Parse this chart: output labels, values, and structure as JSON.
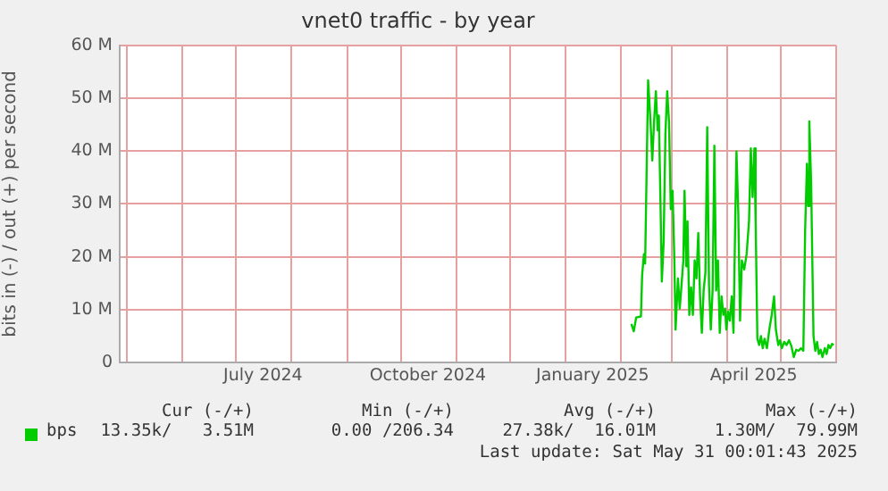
{
  "chart_data": {
    "type": "line",
    "title": "vnet0 traffic - by year",
    "ylabel": "bits in (-) / out (+) per second",
    "xlim": [
      "2024-04-27",
      "2025-06-01"
    ],
    "xticks": [
      {
        "value": "2024-05-01",
        "label": null
      },
      {
        "value": "2024-06-01",
        "label": null
      },
      {
        "value": "2024-07-01",
        "label": null
      },
      {
        "value": "2024-07-16",
        "label": "July 2024"
      },
      {
        "value": "2024-08-01",
        "label": null
      },
      {
        "value": "2024-09-01",
        "label": null
      },
      {
        "value": "2024-10-01",
        "label": null
      },
      {
        "value": "2024-10-16",
        "label": "October 2024"
      },
      {
        "value": "2024-11-01",
        "label": null
      },
      {
        "value": "2024-12-01",
        "label": null
      },
      {
        "value": "2025-01-01",
        "label": null
      },
      {
        "value": "2025-01-16",
        "label": "January 2025"
      },
      {
        "value": "2025-02-01",
        "label": null
      },
      {
        "value": "2025-03-01",
        "label": null
      },
      {
        "value": "2025-04-01",
        "label": null
      },
      {
        "value": "2025-04-16",
        "label": "April 2025"
      },
      {
        "value": "2025-05-01",
        "label": null
      },
      {
        "value": "2025-06-01",
        "label": null
      }
    ],
    "ylim": [
      0,
      60000000
    ],
    "yticks": [
      0,
      {
        "value": 10000000,
        "label": "10 M"
      },
      {
        "value": 20000000,
        "label": "20 M"
      },
      {
        "value": 30000000,
        "label": "30 M"
      },
      {
        "value": 40000000,
        "label": "40 M"
      },
      {
        "value": 50000000,
        "label": "50 M"
      },
      {
        "value": 60000000,
        "label": "60 M"
      }
    ],
    "grid": true,
    "legend": "bottom",
    "annotations": [
      "Cur (-/+)",
      "Min (-/+)",
      "Avg (-/+)",
      "Max (-/+)",
      "13.35k/   3.51M",
      "0.00 /206.34",
      "27.38k/  16.01M",
      "1.30M/  79.99M",
      "Last update: Sat May 31 00:01:43 2025"
    ],
    "series": [
      {
        "name": "bps",
        "color": "#00cc00",
        "x": [
          "2025-02-06T16:00",
          "2025-02-08",
          "2025-02-09T08:00",
          "2025-02-12",
          "2025-02-12T16:00",
          "2025-02-13T16:00",
          "2025-02-14T08:00",
          "2025-02-16",
          "2025-02-17T08:00",
          "2025-02-18T08:00",
          "2025-02-19T08:00",
          "2025-02-20T08:00",
          "2025-02-21T08:00",
          "2025-02-22",
          "2025-02-23",
          "2025-02-23T16:00",
          "2025-02-24T16:00",
          "2025-02-25T16:00",
          "2025-02-26T16:00",
          "2025-02-27T16:00",
          "2025-02-28T16:00",
          "2025-03-01T16:00",
          "2025-03-02T16:00",
          "2025-03-03T08:00",
          "2025-03-04T16:00",
          "2025-03-05T16:00",
          "2025-03-06T16:00",
          "2025-03-07T16:00",
          "2025-03-08T08:00",
          "2025-03-09T08:00",
          "2025-03-10",
          "2025-03-11",
          "2025-03-12",
          "2025-03-13",
          "2025-03-14",
          "2025-03-15",
          "2025-03-16",
          "2025-03-17",
          "2025-03-18",
          "2025-03-19",
          "2025-03-20",
          "2025-03-21",
          "2025-03-22",
          "2025-03-23",
          "2025-03-24",
          "2025-03-25",
          "2025-03-26",
          "2025-03-27",
          "2025-03-28",
          "2025-03-29",
          "2025-03-30",
          "2025-03-31",
          "2025-03-31T16:00",
          "2025-04-01T16:00",
          "2025-04-02T16:00",
          "2025-04-03T16:00",
          "2025-04-04T16:00",
          "2025-04-05T16:00",
          "2025-04-06T08:00",
          "2025-04-07T08:00",
          "2025-04-08T08:00",
          "2025-04-09T08:00",
          "2025-04-10T16:00",
          "2025-04-12",
          "2025-04-13T08:00",
          "2025-04-14T08:00",
          "2025-04-15T08:00",
          "2025-04-16T08:00",
          "2025-04-17",
          "2025-04-18",
          "2025-04-19",
          "2025-04-20",
          "2025-04-21",
          "2025-04-22",
          "2025-04-23T08:00",
          "2025-04-24T16:00",
          "2025-04-26",
          "2025-04-27T08:00",
          "2025-04-28T08:00",
          "2025-04-29T16:00",
          "2025-04-30T16:00",
          "2025-05-01T16:00",
          "2025-05-03",
          "2025-05-04T08:00",
          "2025-05-05T16:00",
          "2025-05-07",
          "2025-05-08T08:00",
          "2025-05-09T16:00",
          "2025-05-11",
          "2025-05-12T08:00",
          "2025-05-13T16:00",
          "2025-05-14T16:00",
          "2025-05-15T16:00",
          "2025-05-16T08:00",
          "2025-05-17",
          "2025-05-18",
          "2025-05-19T08:00",
          "2025-05-20T08:00",
          "2025-05-21T08:00",
          "2025-05-22T08:00",
          "2025-05-23T08:00",
          "2025-05-24T08:00",
          "2025-05-25T16:00",
          "2025-05-26T16:00",
          "2025-05-27T16:00",
          "2025-05-28T16:00",
          "2025-05-29T16:00",
          "2025-05-30T16:00"
        ],
        "values": [
          7300000,
          5900000,
          8500000,
          8700000,
          16500000,
          20500000,
          18700000,
          53400000,
          45600000,
          38200000,
          45600000,
          51300000,
          43900000,
          46700000,
          28500000,
          15300000,
          22700000,
          43300000,
          51300000,
          45600000,
          29000000,
          32500000,
          19300000,
          6200000,
          15900000,
          10200000,
          14700000,
          19300000,
          32500000,
          18200000,
          26700000,
          9000000,
          14200000,
          9000000,
          19300000,
          15900000,
          24500000,
          12500000,
          5600000,
          13600000,
          17000000,
          44500000,
          14700000,
          6200000,
          13600000,
          41000000,
          13600000,
          19300000,
          5600000,
          12500000,
          9000000,
          10200000,
          6200000,
          9600000,
          7900000,
          12500000,
          5600000,
          27300000,
          39900000,
          28500000,
          7900000,
          19300000,
          17600000,
          20500000,
          26700000,
          40500000,
          31300000,
          40500000,
          27300000,
          4500000,
          3300000,
          5000000,
          2700000,
          4500000,
          2700000,
          6200000,
          9000000,
          12500000,
          6200000,
          3300000,
          4200000,
          2700000,
          3900000,
          3300000,
          4200000,
          3100000,
          1000000,
          2400000,
          2200000,
          2700000,
          2200000,
          25000000,
          37600000,
          29600000,
          45600000,
          34200000,
          5000000,
          2200000,
          3900000,
          1600000,
          2400000,
          1000000,
          2700000,
          1600000,
          3300000,
          2700000,
          3500000,
          3300000
        ]
      }
    ]
  }
}
